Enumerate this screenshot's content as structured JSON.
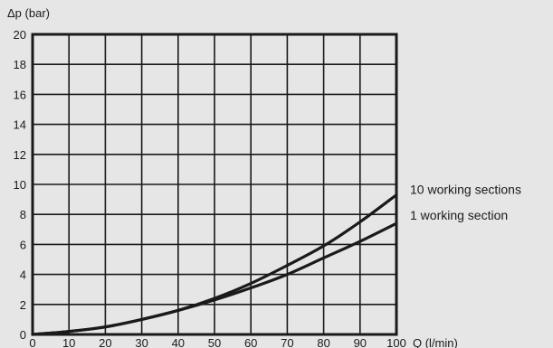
{
  "chart_data": {
    "type": "line",
    "ylabel": "Δp (bar)",
    "xlabel": "Q (l/min)",
    "xlim": [
      0,
      100
    ],
    "ylim": [
      0,
      20
    ],
    "x_ticks": [
      0,
      10,
      20,
      30,
      40,
      50,
      60,
      70,
      80,
      90,
      100
    ],
    "y_ticks": [
      0,
      2,
      4,
      6,
      8,
      10,
      12,
      14,
      16,
      18,
      20
    ],
    "grid": true,
    "x": [
      0,
      10,
      20,
      30,
      40,
      50,
      60,
      70,
      80,
      90,
      100
    ],
    "series": [
      {
        "name": "10 working sections",
        "values": [
          0,
          0.2,
          0.5,
          1.0,
          1.6,
          2.4,
          3.4,
          4.6,
          5.9,
          7.5,
          9.3
        ],
        "color": "#1a1a1a"
      },
      {
        "name": "1 working section",
        "values": [
          0,
          0.2,
          0.5,
          1.0,
          1.6,
          2.3,
          3.1,
          4.0,
          5.1,
          6.2,
          7.4
        ],
        "color": "#1a1a1a"
      }
    ]
  },
  "colors": {
    "background": "#e6e6e6",
    "grid": "#1a1a1a",
    "axis": "#1a1a1a",
    "text": "#1a1a1a"
  }
}
